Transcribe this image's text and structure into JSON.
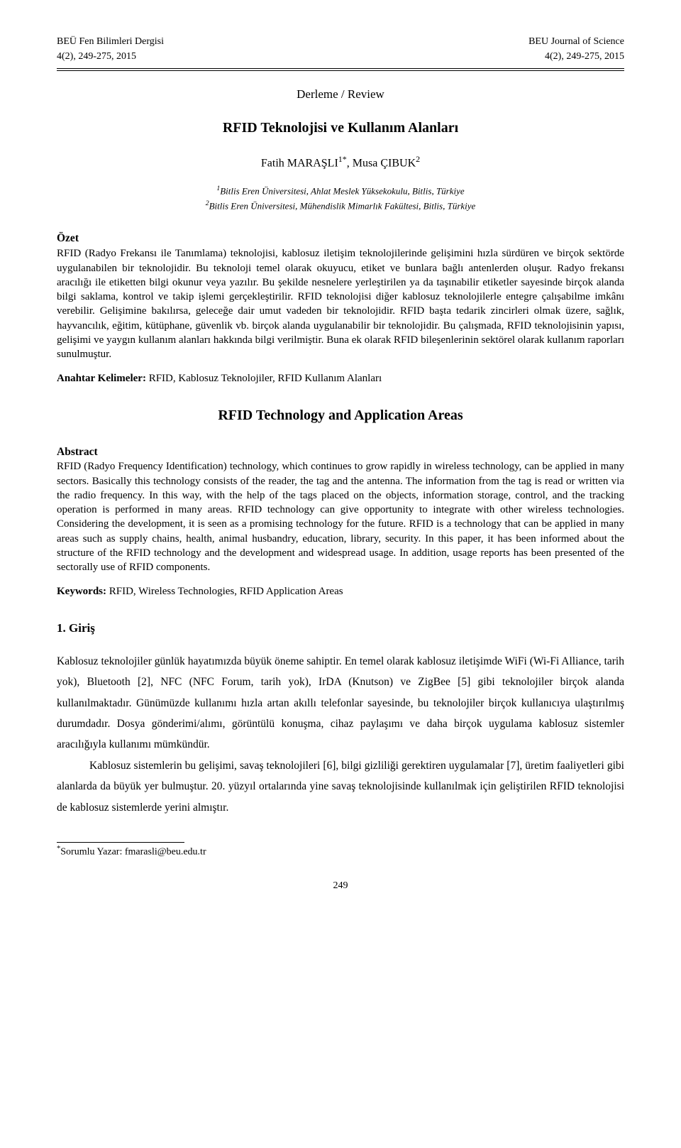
{
  "header": {
    "journal_left": "BEÜ Fen Bilimleri Dergisi",
    "journal_right": "BEU Journal of Science",
    "issue_left": "4(2), 249-275, 2015",
    "issue_right": "4(2), 249-275, 2015"
  },
  "doc_type": "Derleme / Review",
  "title_tr": "RFID Teknolojisi ve Kullanım Alanları",
  "authors_html": "Fatih MARAŞLI<sup>1*</sup>, Musa ÇIBUK<sup>2</sup>",
  "affiliations": {
    "aff1_html": "<sup>1</sup>Bitlis Eren Üniversitesi, Ahlat Meslek Yüksekokulu, Bitlis, Türkiye",
    "aff2_html": "<sup>2</sup>Bitlis Eren Üniversitesi, Mühendislik Mimarlık Fakültesi, Bitlis, Türkiye"
  },
  "ozet": {
    "heading": "Özet",
    "body": "RFID (Radyo Frekansı ile Tanımlama) teknolojisi, kablosuz iletişim teknolojilerinde gelişimini hızla sürdüren ve birçok sektörde uygulanabilen bir teknolojidir. Bu teknoloji temel olarak okuyucu, etiket ve bunlara bağlı antenlerden oluşur. Radyo frekansı aracılığı ile etiketten bilgi okunur veya yazılır. Bu şekilde nesnelere yerleştirilen ya da taşınabilir etiketler sayesinde birçok alanda bilgi saklama, kontrol ve takip işlemi gerçekleştirilir. RFID teknolojisi diğer kablosuz teknolojilerle entegre çalışabilme imkânı verebilir. Gelişimine bakılırsa, geleceğe dair umut vadeden bir teknolojidir. RFID başta tedarik zincirleri olmak üzere, sağlık, hayvancılık, eğitim, kütüphane, güvenlik vb. birçok alanda uygulanabilir bir teknolojidir. Bu çalışmada, RFID teknolojisinin yapısı, gelişimi ve yaygın kullanım alanları hakkında bilgi verilmiştir. Buna ek olarak RFID bileşenlerinin sektörel olarak kullanım raporları sunulmuştur."
  },
  "anahtar": {
    "label": "Anahtar Kelimeler:",
    "value": " RFID, Kablosuz Teknolojiler, RFID Kullanım Alanları"
  },
  "title_en": "RFID Technology and Application Areas",
  "abstract": {
    "heading": "Abstract",
    "body": "RFID (Radyo Frequency Identification) technology, which continues to grow rapidly in wireless technology, can be applied in many sectors. Basically this technology consists of the reader, the tag and the antenna. The information from the tag is read or written via the radio frequency. In this way, with the help of the tags placed on the objects, information storage, control, and the tracking operation is performed in many areas. RFID technology can give opportunity to integrate with other wireless technologies. Considering the development, it is seen as a promising technology for the future. RFID is a technology that can be applied in many areas such as supply chains, health, animal husbandry, education, library, security. In this paper, it has been informed about the structure of the RFID technology and the development and widespread usage. In addition, usage reports has been presented of the sectorally use of RFID components."
  },
  "keywords": {
    "label": "Keywords:",
    "value": " RFID, Wireless Technologies, RFID Application Areas"
  },
  "intro": {
    "heading": "1. Giriş",
    "para1": "Kablosuz teknolojiler günlük hayatımızda büyük öneme sahiptir. En temel olarak kablosuz iletişimde WiFi (Wi-Fi Alliance, tarih yok), Bluetooth [2], NFC (NFC Forum, tarih yok), IrDA (Knutson) ve ZigBee [5] gibi teknolojiler birçok alanda kullanılmaktadır. Günümüzde kullanımı hızla artan akıllı telefonlar sayesinde, bu teknolojiler birçok kullanıcıya ulaştırılmış durumdadır. Dosya gönderimi/alımı, görüntülü konuşma, cihaz paylaşımı ve daha birçok uygulama kablosuz sistemler aracılığıyla kullanımı mümkündür.",
    "para2": "Kablosuz sistemlerin bu gelişimi, savaş teknolojileri [6], bilgi gizliliği gerektiren uygulamalar [7], üretim faaliyetleri gibi alanlarda da büyük yer bulmuştur. 20. yüzyıl ortalarında yine savaş teknolojisinde kullanılmak için geliştirilen RFID teknolojisi de kablosuz sistemlerde yerini almıştır."
  },
  "footnote_html": "<sup>*</sup>Sorumlu Yazar: fmarasli@beu.edu.tr",
  "page_number": "249"
}
